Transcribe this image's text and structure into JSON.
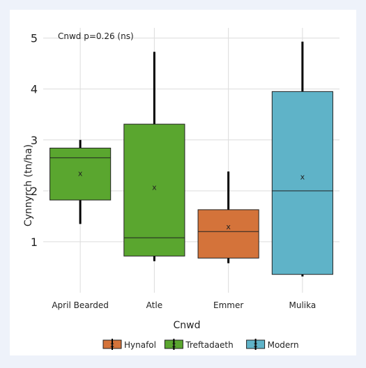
{
  "chart_data": {
    "type": "box",
    "annotation": "Cnwd p=0.26 (ns)",
    "xlabel": "Cnwd",
    "ylabel": "Cynnyrch (tn/ha)",
    "ylim": [
      0.0,
      5.2
    ],
    "yticks": [
      1,
      2,
      3,
      4,
      5
    ],
    "grid": true,
    "legend_position": "bottom",
    "categories": [
      "April Bearded",
      "Atle",
      "Emmer",
      "Mulika"
    ],
    "boxes": [
      {
        "category": "April Bearded",
        "group": "Treftadaeth",
        "min": 1.35,
        "q1": 1.82,
        "median": 2.65,
        "q3": 2.84,
        "max": 3.0,
        "mean": 2.35
      },
      {
        "category": "Atle",
        "group": "Treftadaeth",
        "min": 0.62,
        "q1": 0.72,
        "median": 1.08,
        "q3": 3.31,
        "max": 4.73,
        "mean": 2.07
      },
      {
        "category": "Emmer",
        "group": "Hynafol",
        "min": 0.58,
        "q1": 0.68,
        "median": 1.2,
        "q3": 1.63,
        "max": 2.38,
        "mean": 1.3
      },
      {
        "category": "Mulika",
        "group": "Modern",
        "min": 0.32,
        "q1": 0.36,
        "median": 2.0,
        "q3": 3.95,
        "max": 4.93,
        "mean": 2.28
      }
    ],
    "mean_marker": "x",
    "legend": [
      {
        "name": "Hynafol",
        "color": "#d4733a"
      },
      {
        "name": "Treftadaeth",
        "color": "#5aa62f"
      },
      {
        "name": "Modern",
        "color": "#5fb3c8"
      }
    ]
  }
}
